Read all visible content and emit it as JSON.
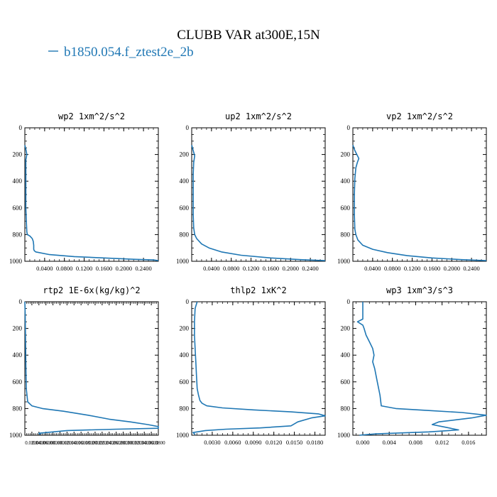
{
  "figure": {
    "title": "CLUBB VAR at300E,15N",
    "legend_label": "b1850.054.f_ztest2e_2b",
    "series_color": "#1f77b4"
  },
  "chart_data": [
    {
      "type": "line",
      "title": "wp2  1xm^2/s^2",
      "ylim": [
        1000,
        0
      ],
      "xlim": [
        0,
        0.27
      ],
      "yticks": [
        "0",
        "200",
        "400",
        "600",
        "800",
        "1000"
      ],
      "xticks": [
        "0.0400",
        "0.0800",
        "0.1200",
        "0.1600",
        "0.2000",
        "0.2400"
      ],
      "xtick_values": [
        0.04,
        0.08,
        0.12,
        0.16,
        0.2,
        0.24
      ],
      "series": [
        {
          "x": [
            0.0,
            0.002,
            0.004,
            0.002,
            0.002,
            0.002,
            0.002,
            0.002,
            0.003,
            0.004,
            0.005,
            0.01,
            0.015,
            0.017,
            0.018,
            0.018,
            0.019,
            0.022,
            0.05,
            0.1,
            0.16,
            0.22,
            0.26,
            0.27
          ],
          "y": [
            130,
            160,
            200,
            240,
            300,
            400,
            500,
            600,
            700,
            780,
            800,
            810,
            830,
            850,
            880,
            910,
            920,
            930,
            950,
            965,
            975,
            985,
            990,
            995
          ]
        }
      ]
    },
    {
      "type": "line",
      "title": "up2  1xm^2/s^2",
      "ylim": [
        1000,
        0
      ],
      "xlim": [
        0,
        0.27
      ],
      "yticks": [
        "0",
        "200",
        "400",
        "600",
        "800",
        "1000"
      ],
      "xticks": [
        "0.0400",
        "0.0800",
        "0.1200",
        "0.1600",
        "0.2000",
        "0.2400"
      ],
      "xtick_values": [
        0.04,
        0.08,
        0.12,
        0.16,
        0.2,
        0.24
      ],
      "series": [
        {
          "x": [
            0.0,
            0.003,
            0.006,
            0.004,
            0.003,
            0.003,
            0.003,
            0.004,
            0.006,
            0.01,
            0.02,
            0.035,
            0.06,
            0.1,
            0.16,
            0.22,
            0.27
          ],
          "y": [
            130,
            170,
            210,
            260,
            350,
            500,
            650,
            750,
            800,
            830,
            870,
            900,
            930,
            955,
            975,
            988,
            995
          ]
        }
      ]
    },
    {
      "type": "line",
      "title": "vp2  1xm^2/s^2",
      "ylim": [
        1000,
        0
      ],
      "xlim": [
        0,
        0.27
      ],
      "yticks": [
        "0",
        "200",
        "400",
        "600",
        "800",
        "1000"
      ],
      "xticks": [
        "0.0400",
        "0.0800",
        "0.1200",
        "0.1600",
        "0.2000",
        "0.2400"
      ],
      "xtick_values": [
        0.04,
        0.08,
        0.12,
        0.16,
        0.2,
        0.24
      ],
      "series": [
        {
          "x": [
            0.0,
            0.004,
            0.008,
            0.012,
            0.009,
            0.006,
            0.004,
            0.003,
            0.003,
            0.004,
            0.006,
            0.01,
            0.02,
            0.04,
            0.07,
            0.11,
            0.16,
            0.22,
            0.27
          ],
          "y": [
            130,
            170,
            200,
            230,
            260,
            300,
            380,
            500,
            650,
            760,
            800,
            840,
            880,
            910,
            935,
            958,
            975,
            988,
            995
          ]
        }
      ]
    },
    {
      "type": "line",
      "title": "rtp2  1E-6x(kg/kg)^2",
      "ylim": [
        1000,
        0
      ],
      "xlim": [
        0,
        190
      ],
      "yticks": [
        "0",
        "200",
        "400",
        "600",
        "800",
        "1000"
      ],
      "xticks": [
        "0.0200",
        "0.0400",
        "0.0600",
        "0.0800",
        "0.1000",
        "0.1200",
        "0.1400",
        "0.1600",
        "0.1800",
        "0.2000",
        "0.2200",
        "0.2400",
        "0.2600",
        "0.2800",
        "0.3000",
        "0.3200",
        "0.3400",
        "0.3600",
        "0.3800",
        "0.4000"
      ],
      "xtick_values": [
        10,
        20,
        30,
        40,
        50,
        60,
        70,
        80,
        90,
        100,
        110,
        120,
        130,
        140,
        150,
        160,
        170,
        180,
        190,
        200
      ],
      "series": [
        {
          "x": [
            0.0,
            0.5,
            1,
            1.5,
            2,
            4,
            10,
            25,
            55,
            90,
            120,
            150,
            175,
            190,
            190,
            130,
            60,
            20,
            22
          ],
          "y": [
            0,
            100,
            300,
            500,
            650,
            750,
            780,
            800,
            820,
            850,
            880,
            900,
            920,
            935,
            948,
            955,
            965,
            985,
            995
          ]
        }
      ]
    },
    {
      "type": "line",
      "title": "thlp2  1xK^2",
      "ylim": [
        1000,
        0
      ],
      "xlim": [
        0,
        0.0195
      ],
      "yticks": [
        "0",
        "200",
        "400",
        "600",
        "800",
        "1000"
      ],
      "xticks": [
        "0.0030",
        "0.0060",
        "0.0090",
        "0.0120",
        "0.0150",
        "0.0180"
      ],
      "xtick_values": [
        0.003,
        0.006,
        0.009,
        0.012,
        0.015,
        0.018
      ],
      "series": [
        {
          "x": [
            0.0008,
            0.0005,
            0.0004,
            0.0004,
            0.0005,
            0.0006,
            0.0007,
            0.0008,
            0.001,
            0.0012,
            0.0015,
            0.0022,
            0.0045,
            0.009,
            0.0145,
            0.0185,
            0.0195,
            0.0175,
            0.0155,
            0.0145,
            0.01,
            0.005,
            0.002,
            0.0002,
            0.0005
          ],
          "y": [
            0,
            50,
            150,
            250,
            350,
            450,
            550,
            650,
            700,
            740,
            760,
            780,
            795,
            810,
            825,
            840,
            855,
            870,
            900,
            930,
            945,
            955,
            965,
            980,
            995
          ]
        }
      ]
    },
    {
      "type": "line",
      "title": "wp3  1xm^3/s^3",
      "ylim": [
        1000,
        0
      ],
      "xlim": [
        -0.0015,
        0.0187
      ],
      "yticks": [
        "0",
        "200",
        "400",
        "600",
        "800",
        "1000"
      ],
      "xticks": [
        "0.000",
        "0.004",
        "0.008",
        "0.012",
        "0.016"
      ],
      "xtick_values": [
        0.0,
        0.004,
        0.008,
        0.012,
        0.016
      ],
      "series": [
        {
          "x": [
            0.0,
            0.0,
            0.0,
            -0.0008,
            0.0,
            0.0002,
            0.0005,
            0.001,
            0.0015,
            0.0017,
            0.0015,
            0.0018,
            0.0022,
            0.0026,
            0.0028,
            0.005,
            0.01,
            0.015,
            0.0187,
            0.0165,
            0.0115,
            0.0105,
            0.0125,
            0.0145,
            0.01,
            0.002,
            -0.0005
          ],
          "y": [
            0,
            80,
            130,
            150,
            175,
            200,
            250,
            300,
            350,
            400,
            450,
            500,
            600,
            700,
            780,
            800,
            815,
            830,
            850,
            870,
            900,
            920,
            940,
            960,
            975,
            990,
            1000
          ]
        }
      ]
    }
  ]
}
